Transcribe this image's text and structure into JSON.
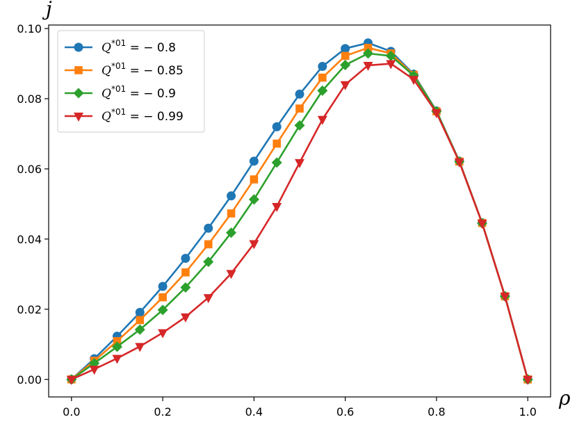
{
  "chart_data": {
    "type": "line",
    "xlabel": "ρ",
    "ylabel": "j",
    "xlim": [
      -0.05,
      1.05
    ],
    "ylim": [
      -0.005,
      0.101
    ],
    "xticks": [
      0.0,
      0.2,
      0.4,
      0.6,
      0.8,
      1.0
    ],
    "xtick_labels": [
      "0.0",
      "0.2",
      "0.4",
      "0.6",
      "0.8",
      "1.0"
    ],
    "yticks": [
      0.0,
      0.02,
      0.04,
      0.06,
      0.08,
      0.1
    ],
    "ytick_labels": [
      "0.00",
      "0.02",
      "0.04",
      "0.06",
      "0.08",
      "0.10"
    ],
    "legend_position": "top-left",
    "grid": false,
    "x": [
      0.0,
      0.05,
      0.1,
      0.15,
      0.2,
      0.25,
      0.3,
      0.35,
      0.4,
      0.45,
      0.5,
      0.55,
      0.6,
      0.65,
      0.7,
      0.75,
      0.8,
      0.85,
      0.9,
      0.95,
      1.0
    ],
    "series": [
      {
        "name": "Q*01 = −0.8",
        "legend": {
          "base": "Q",
          "sup": "*01",
          "rest": " = − 0.8"
        },
        "color": "#1f77b4",
        "marker": "circle",
        "values": [
          0.0,
          0.0059,
          0.0123,
          0.0191,
          0.0265,
          0.0345,
          0.0431,
          0.0523,
          0.0622,
          0.072,
          0.0813,
          0.0892,
          0.0943,
          0.0959,
          0.0935,
          0.087,
          0.0765,
          0.0622,
          0.0446,
          0.0237,
          0.0
        ]
      },
      {
        "name": "Q*01 = −0.85",
        "legend": {
          "base": "Q",
          "sup": "*01",
          "rest": " = − 0.85"
        },
        "color": "#ff7f0e",
        "marker": "square",
        "values": [
          0.0,
          0.0053,
          0.0109,
          0.0169,
          0.0234,
          0.0305,
          0.0385,
          0.0473,
          0.057,
          0.0672,
          0.0772,
          0.086,
          0.0922,
          0.0945,
          0.0929,
          0.0868,
          0.0764,
          0.0621,
          0.0446,
          0.0237,
          0.0
        ]
      },
      {
        "name": "Q*01 = −0.9",
        "legend": {
          "base": "Q",
          "sup": "*01",
          "rest": " = − 0.9"
        },
        "color": "#2ca02c",
        "marker": "diamond",
        "values": [
          0.0,
          0.0046,
          0.0093,
          0.0142,
          0.0198,
          0.0262,
          0.0335,
          0.0418,
          0.0513,
          0.0618,
          0.0724,
          0.0823,
          0.0896,
          0.0929,
          0.0922,
          0.0866,
          0.0764,
          0.0621,
          0.0445,
          0.0237,
          0.0
        ]
      },
      {
        "name": "Q*01 = −0.99",
        "legend": {
          "base": "Q",
          "sup": "*01",
          "rest": " = − 0.99"
        },
        "color": "#d62728",
        "marker": "triangle-down",
        "values": [
          0.0,
          0.0029,
          0.006,
          0.0094,
          0.0133,
          0.0178,
          0.0233,
          0.0302,
          0.0387,
          0.0493,
          0.0618,
          0.0741,
          0.084,
          0.0895,
          0.09,
          0.0855,
          0.076,
          0.062,
          0.0445,
          0.0237,
          0.0
        ]
      }
    ]
  }
}
